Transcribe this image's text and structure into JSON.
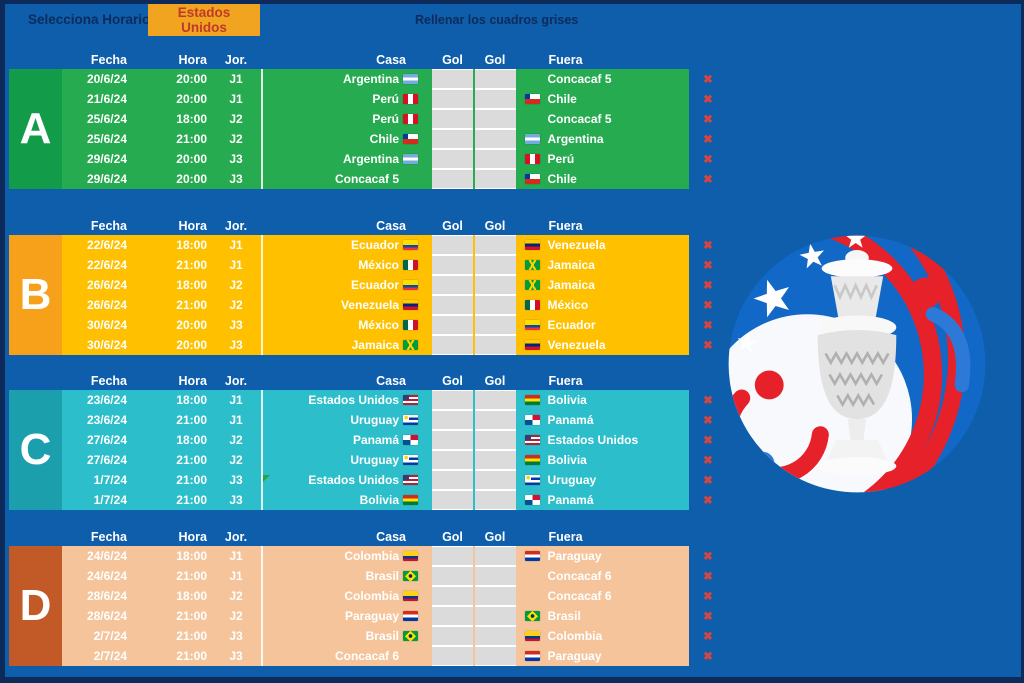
{
  "toolbar": {
    "select_label": "Selecciona Horario:",
    "selected_timezone": "Estados Unidos",
    "instruction": "Rellenar los cuadros grises"
  },
  "columns": [
    "Fecha",
    "Hora",
    "Jor.",
    "Casa",
    "Gol",
    "Gol",
    "Fuera"
  ],
  "delete_label": "✖",
  "colors": {
    "background": "#0E5EAB",
    "frame": "#0C2B5B",
    "button_bg": "#F0A41F",
    "button_text": "#BE3A2B",
    "dark_label_text": "#0D2B5C",
    "grey_cell": "#DBDBDB",
    "delete_x": "#D8453E"
  },
  "groups": [
    {
      "letter": "A",
      "band_color": "#129C4A",
      "body_color": "#27AB50",
      "rows": [
        {
          "fecha": "20/6/24",
          "hora": "20:00",
          "jor": "J1",
          "casa": "Argentina",
          "casa_flag": "flag-argentina",
          "gol_casa": "",
          "gol_fuera": "",
          "fuera": "Concacaf 5",
          "fuera_flag": ""
        },
        {
          "fecha": "21/6/24",
          "hora": "20:00",
          "jor": "J1",
          "casa": "Perú",
          "casa_flag": "flag-peru",
          "gol_casa": "",
          "gol_fuera": "",
          "fuera": "Chile",
          "fuera_flag": "flag-chile"
        },
        {
          "fecha": "25/6/24",
          "hora": "18:00",
          "jor": "J2",
          "casa": "Perú",
          "casa_flag": "flag-peru",
          "gol_casa": "",
          "gol_fuera": "",
          "fuera": "Concacaf 5",
          "fuera_flag": ""
        },
        {
          "fecha": "25/6/24",
          "hora": "21:00",
          "jor": "J2",
          "casa": "Chile",
          "casa_flag": "flag-chile",
          "gol_casa": "",
          "gol_fuera": "",
          "fuera": "Argentina",
          "fuera_flag": "flag-argentina"
        },
        {
          "fecha": "29/6/24",
          "hora": "20:00",
          "jor": "J3",
          "casa": "Argentina",
          "casa_flag": "flag-argentina",
          "gol_casa": "",
          "gol_fuera": "",
          "fuera": "Perú",
          "fuera_flag": "flag-peru"
        },
        {
          "fecha": "29/6/24",
          "hora": "20:00",
          "jor": "J3",
          "casa": "Concacaf 5",
          "casa_flag": "",
          "gol_casa": "",
          "gol_fuera": "",
          "fuera": "Chile",
          "fuera_flag": "flag-chile"
        }
      ]
    },
    {
      "letter": "B",
      "band_color": "#F7A11A",
      "body_color": "#FFC000",
      "rows": [
        {
          "fecha": "22/6/24",
          "hora": "18:00",
          "jor": "J1",
          "casa": "Ecuador",
          "casa_flag": "flag-ecuador",
          "gol_casa": "",
          "gol_fuera": "",
          "fuera": "Venezuela",
          "fuera_flag": "flag-venezuela"
        },
        {
          "fecha": "22/6/24",
          "hora": "21:00",
          "jor": "J1",
          "casa": "México",
          "casa_flag": "flag-mexico",
          "gol_casa": "",
          "gol_fuera": "",
          "fuera": "Jamaica",
          "fuera_flag": "flag-jamaica"
        },
        {
          "fecha": "26/6/24",
          "hora": "18:00",
          "jor": "J2",
          "casa": "Ecuador",
          "casa_flag": "flag-ecuador",
          "gol_casa": "",
          "gol_fuera": "",
          "fuera": "Jamaica",
          "fuera_flag": "flag-jamaica"
        },
        {
          "fecha": "26/6/24",
          "hora": "21:00",
          "jor": "J2",
          "casa": "Venezuela",
          "casa_flag": "flag-venezuela",
          "gol_casa": "",
          "gol_fuera": "",
          "fuera": "México",
          "fuera_flag": "flag-mexico"
        },
        {
          "fecha": "30/6/24",
          "hora": "20:00",
          "jor": "J3",
          "casa": "México",
          "casa_flag": "flag-mexico",
          "gol_casa": "",
          "gol_fuera": "",
          "fuera": "Ecuador",
          "fuera_flag": "flag-ecuador"
        },
        {
          "fecha": "30/6/24",
          "hora": "20:00",
          "jor": "J3",
          "casa": "Jamaica",
          "casa_flag": "flag-jamaica",
          "gol_casa": "",
          "gol_fuera": "",
          "fuera": "Venezuela",
          "fuera_flag": "flag-venezuela"
        }
      ]
    },
    {
      "letter": "C",
      "band_color": "#1C9FAD",
      "body_color": "#2CBFCB",
      "rows": [
        {
          "fecha": "23/6/24",
          "hora": "18:00",
          "jor": "J1",
          "casa": "Estados Unidos",
          "casa_flag": "flag-estados-unidos",
          "gol_casa": "",
          "gol_fuera": "",
          "fuera": "Bolivia",
          "fuera_flag": "flag-bolivia"
        },
        {
          "fecha": "23/6/24",
          "hora": "21:00",
          "jor": "J1",
          "casa": "Uruguay",
          "casa_flag": "flag-uruguay",
          "gol_casa": "",
          "gol_fuera": "",
          "fuera": "Panamá",
          "fuera_flag": "flag-panama"
        },
        {
          "fecha": "27/6/24",
          "hora": "18:00",
          "jor": "J2",
          "casa": "Panamá",
          "casa_flag": "flag-panama",
          "gol_casa": "",
          "gol_fuera": "",
          "fuera": "Estados Unidos",
          "fuera_flag": "flag-estados-unidos"
        },
        {
          "fecha": "27/6/24",
          "hora": "21:00",
          "jor": "J2",
          "casa": "Uruguay",
          "casa_flag": "flag-uruguay",
          "gol_casa": "",
          "gol_fuera": "",
          "fuera": "Bolivia",
          "fuera_flag": "flag-bolivia"
        },
        {
          "fecha": "1/7/24",
          "hora": "21:00",
          "jor": "J3",
          "casa": "Estados Unidos",
          "casa_flag": "flag-estados-unidos",
          "gol_casa": "",
          "gol_fuera": "",
          "fuera": "Uruguay",
          "fuera_flag": "flag-uruguay",
          "marker": true
        },
        {
          "fecha": "1/7/24",
          "hora": "21:00",
          "jor": "J3",
          "casa": "Bolivia",
          "casa_flag": "flag-bolivia",
          "gol_casa": "",
          "gol_fuera": "",
          "fuera": "Panamá",
          "fuera_flag": "flag-panama"
        }
      ]
    },
    {
      "letter": "D",
      "band_color": "#C25A28",
      "body_color": "#F5C49B",
      "rows": [
        {
          "fecha": "24/6/24",
          "hora": "18:00",
          "jor": "J1",
          "casa": "Colombia",
          "casa_flag": "flag-colombia",
          "gol_casa": "",
          "gol_fuera": "",
          "fuera": "Paraguay",
          "fuera_flag": "flag-paraguay"
        },
        {
          "fecha": "24/6/24",
          "hora": "21:00",
          "jor": "J1",
          "casa": "Brasil",
          "casa_flag": "flag-brasil",
          "gol_casa": "",
          "gol_fuera": "",
          "fuera": "Concacaf 6",
          "fuera_flag": ""
        },
        {
          "fecha": "28/6/24",
          "hora": "18:00",
          "jor": "J2",
          "casa": "Colombia",
          "casa_flag": "flag-colombia",
          "gol_casa": "",
          "gol_fuera": "",
          "fuera": "Concacaf 6",
          "fuera_flag": ""
        },
        {
          "fecha": "28/6/24",
          "hora": "21:00",
          "jor": "J2",
          "casa": "Paraguay",
          "casa_flag": "flag-paraguay",
          "gol_casa": "",
          "gol_fuera": "",
          "fuera": "Brasil",
          "fuera_flag": "flag-brasil"
        },
        {
          "fecha": "2/7/24",
          "hora": "21:00",
          "jor": "J3",
          "casa": "Brasil",
          "casa_flag": "flag-brasil",
          "gol_casa": "",
          "gol_fuera": "",
          "fuera": "Colombia",
          "fuera_flag": "flag-colombia"
        },
        {
          "fecha": "2/7/24",
          "hora": "21:00",
          "jor": "J3",
          "casa": "Concacaf 6",
          "casa_flag": "",
          "gol_casa": "",
          "gol_fuera": "",
          "fuera": "Paraguay",
          "fuera_flag": "flag-paraguay"
        }
      ]
    }
  ]
}
